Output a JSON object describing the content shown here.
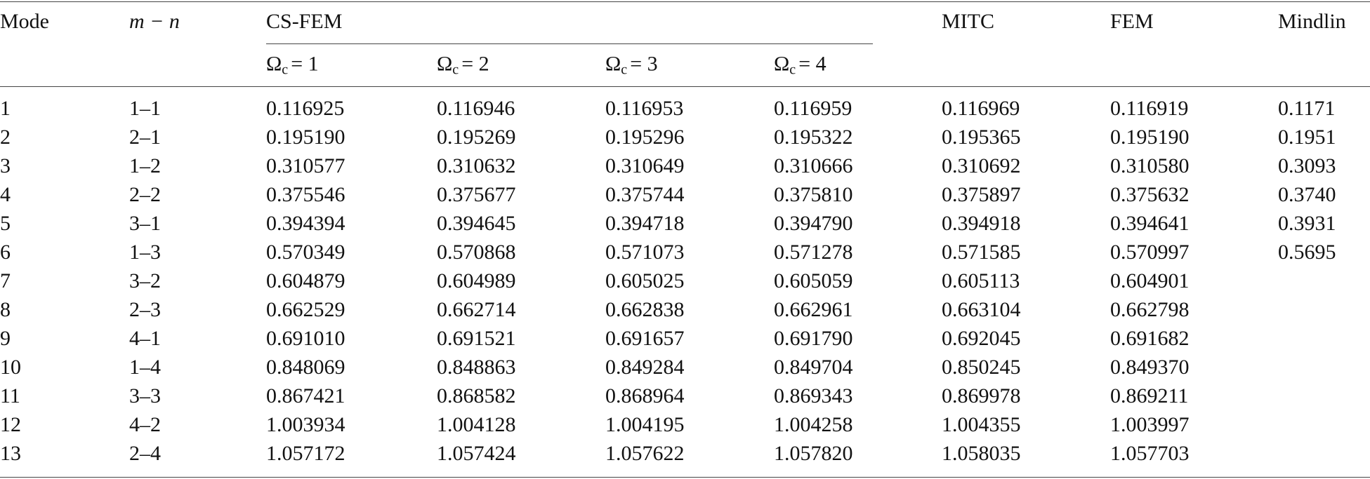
{
  "table": {
    "header": [
      "Mode",
      "m − n",
      "CS-FEM",
      "MITC",
      "FEM",
      "Mindlin"
    ],
    "sub_header": [
      {
        "symbol": "Ω",
        "subscript": "c",
        "value": "= 1"
      },
      {
        "symbol": "Ω",
        "subscript": "c",
        "value": "= 2"
      },
      {
        "symbol": "Ω",
        "subscript": "c",
        "value": "= 3"
      },
      {
        "symbol": "Ω",
        "subscript": "c",
        "value": "= 4"
      }
    ],
    "rows": [
      [
        "1",
        "1–1",
        "0.116925",
        "0.116946",
        "0.116953",
        "0.116959",
        "0.116969",
        "0.116919",
        "0.1171"
      ],
      [
        "2",
        "2–1",
        "0.195190",
        "0.195269",
        "0.195296",
        "0.195322",
        "0.195365",
        "0.195190",
        "0.1951"
      ],
      [
        "3",
        "1–2",
        "0.310577",
        "0.310632",
        "0.310649",
        "0.310666",
        "0.310692",
        "0.310580",
        "0.3093"
      ],
      [
        "4",
        "2–2",
        "0.375546",
        "0.375677",
        "0.375744",
        "0.375810",
        "0.375897",
        "0.375632",
        "0.3740"
      ],
      [
        "5",
        "3–1",
        "0.394394",
        "0.394645",
        "0.394718",
        "0.394790",
        "0.394918",
        "0.394641",
        "0.3931"
      ],
      [
        "6",
        "1–3",
        "0.570349",
        "0.570868",
        "0.571073",
        "0.571278",
        "0.571585",
        "0.570997",
        "0.5695"
      ],
      [
        "7",
        "3–2",
        "0.604879",
        "0.604989",
        "0.605025",
        "0.605059",
        "0.605113",
        "0.604901"
      ],
      [
        "8",
        "2–3",
        "0.662529",
        "0.662714",
        "0.662838",
        "0.662961",
        "0.663104",
        "0.662798"
      ],
      [
        "9",
        "4–1",
        "0.691010",
        "0.691521",
        "0.691657",
        "0.691790",
        "0.692045",
        "0.691682"
      ],
      [
        "10",
        "1–4",
        "0.848069",
        "0.848863",
        "0.849284",
        "0.849704",
        "0.850245",
        "0.849370"
      ],
      [
        "11",
        "3–3",
        "0.867421",
        "0.868582",
        "0.868964",
        "0.869343",
        "0.869978",
        "0.869211"
      ],
      [
        "12",
        "4–2",
        "1.003934",
        "1.004128",
        "1.004195",
        "1.004258",
        "1.004355",
        "1.003997"
      ],
      [
        "13",
        "2–4",
        "1.057172",
        "1.057424",
        "1.057622",
        "1.057820",
        "1.058035",
        "1.057703"
      ]
    ]
  }
}
